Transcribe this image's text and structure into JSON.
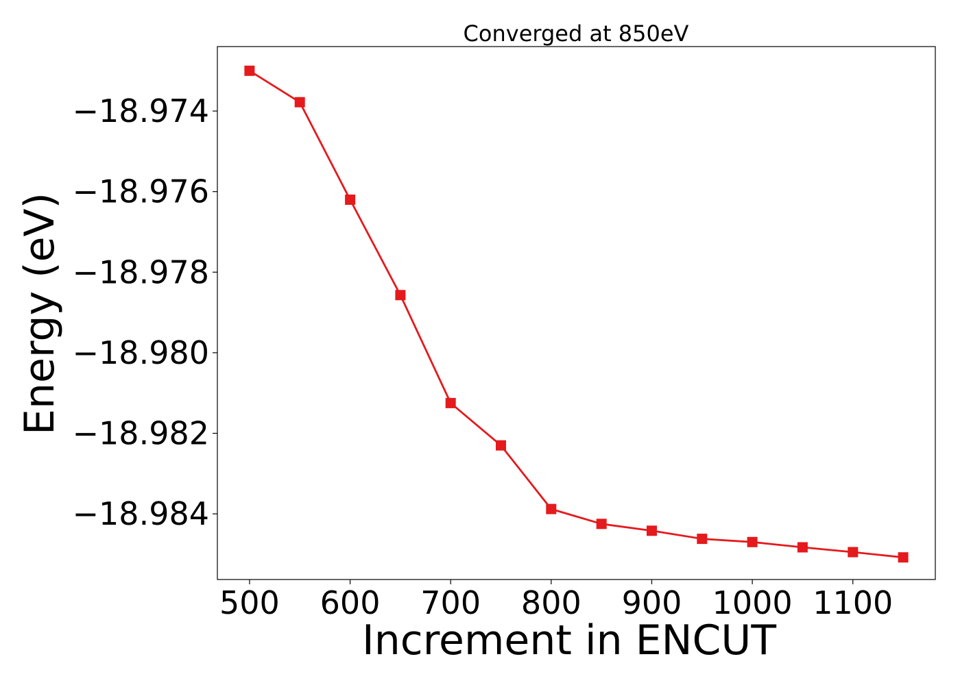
{
  "chart_data": {
    "type": "line",
    "title": "Converged at 850eV",
    "xlabel": "Increment in ENCUT",
    "ylabel": "Energy (eV)",
    "x": [
      500,
      550,
      600,
      650,
      700,
      750,
      800,
      850,
      900,
      950,
      1000,
      1050,
      1100,
      1150
    ],
    "series": [
      {
        "values": [
          -18.973,
          -18.97378,
          -18.9762,
          -18.97857,
          -18.98125,
          -18.9823,
          -18.98388,
          -18.98425,
          -18.98442,
          -18.98462,
          -18.9847,
          -18.98483,
          -18.98495,
          -18.98508
        ],
        "color": "#e41a1c",
        "marker": "square"
      }
    ],
    "xlim": [
      468,
      1182
    ],
    "ylim": [
      -18.98563,
      -18.9724
    ],
    "xticks": [
      500,
      600,
      700,
      800,
      900,
      1000,
      1100
    ],
    "xtick_labels": [
      "500",
      "600",
      "700",
      "800",
      "900",
      "1000",
      "1100"
    ],
    "yticks": [
      -18.974,
      -18.976,
      -18.978,
      -18.98,
      -18.982,
      -18.984
    ],
    "ytick_labels": [
      "−18.974",
      "−18.976",
      "−18.978",
      "−18.980",
      "−18.982",
      "−18.984"
    ],
    "grid": false,
    "legend": false
  }
}
